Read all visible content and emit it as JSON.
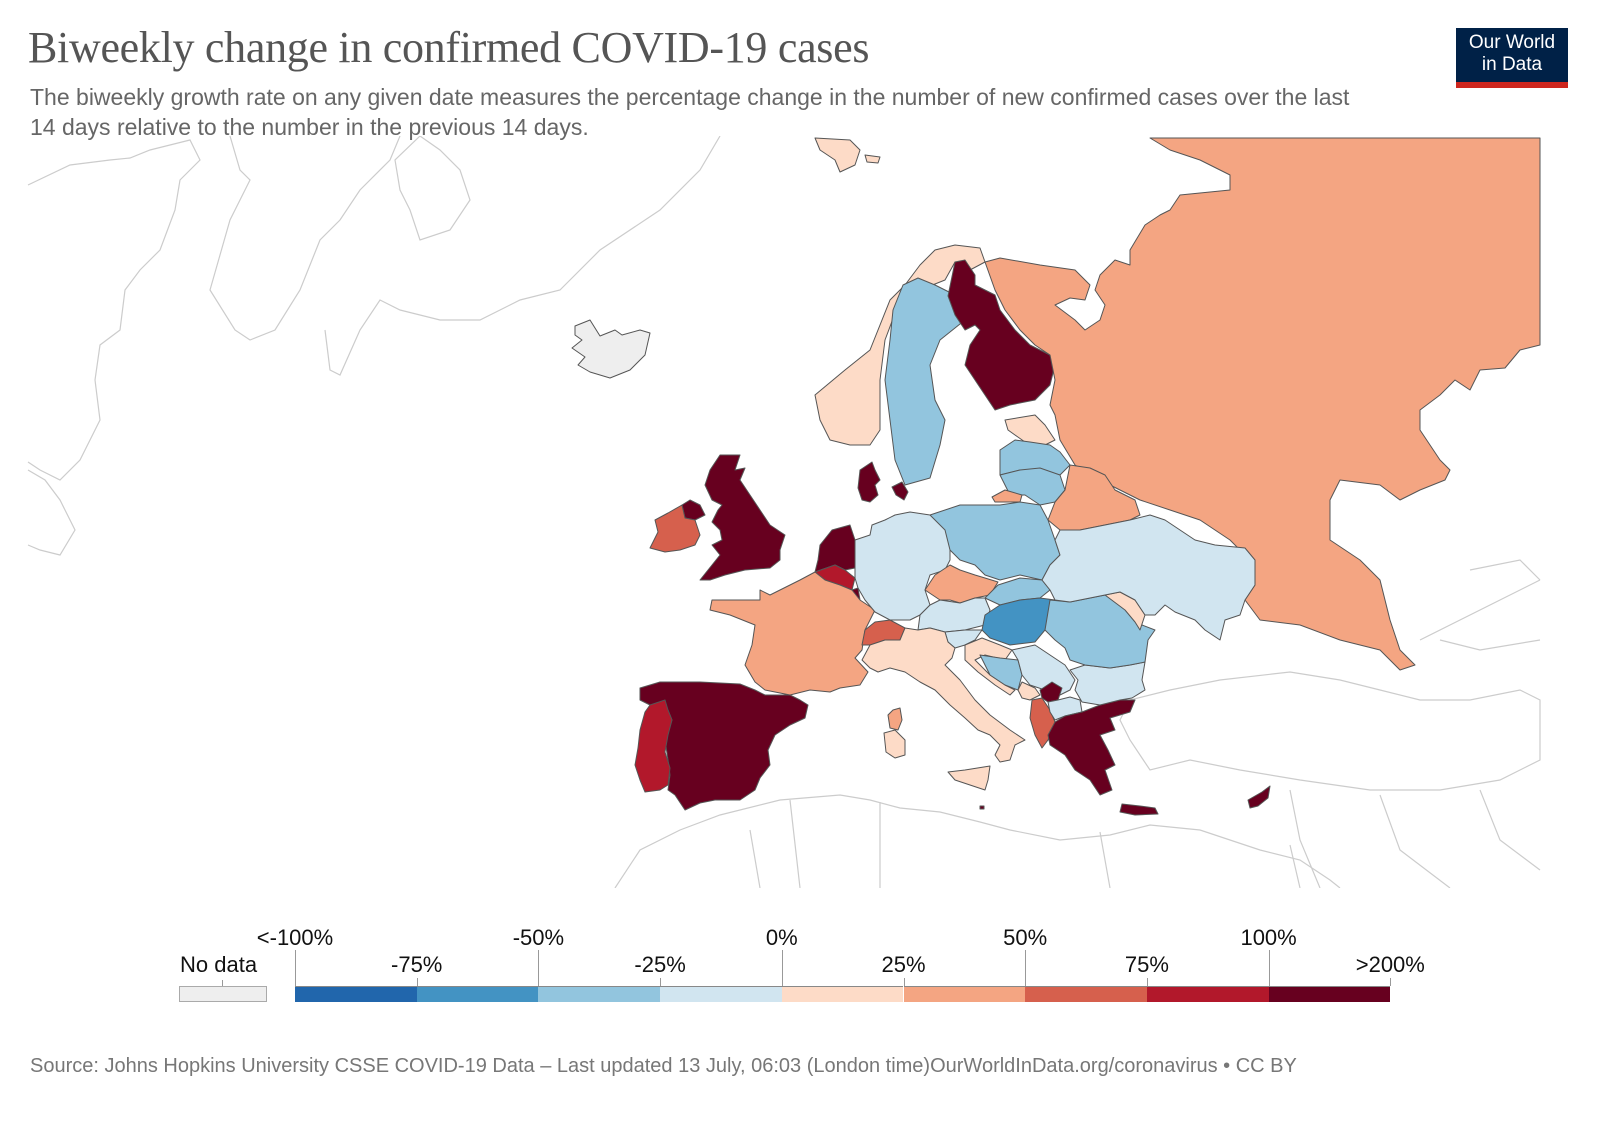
{
  "header": {
    "title": "Biweekly change in confirmed COVID-19 cases",
    "subtitle": "The biweekly growth rate on any given date measures the percentage change in the number of new confirmed cases over the last 14 days relative to the number in the previous 14 days.",
    "logo_line1": "Our World",
    "logo_line2": "in Data"
  },
  "colors": {
    "no_data": "#eeeeee",
    "bins": [
      "#2166ac",
      "#4393c3",
      "#92c5de",
      "#d1e5f0",
      "#fddbc7",
      "#f4a582",
      "#d6604d",
      "#b2182b",
      "#67001f"
    ],
    "logo_bg": "#002147",
    "logo_accent": "#ce261e"
  },
  "legend": {
    "no_data_label": "No data",
    "tick_labels_top": [
      "<-100%",
      "-50%",
      "0%",
      "50%",
      "100%"
    ],
    "tick_labels_bottom": [
      "-75%",
      "-25%",
      "25%",
      "75%",
      ">200%"
    ]
  },
  "chart_data": {
    "type": "choropleth",
    "title": "Biweekly change in confirmed COVID-19 cases",
    "subtitle": "The biweekly growth rate on any given date measures the percentage change in the number of new confirmed cases over the last 14 days relative to the number in the previous 14 days.",
    "region": "Europe",
    "legend_bins": [
      {
        "range": "<-100% to -75%",
        "color": "#2166ac"
      },
      {
        "range": "-75% to -50%",
        "color": "#4393c3"
      },
      {
        "range": "-50% to -25%",
        "color": "#92c5de"
      },
      {
        "range": "-25% to 0%",
        "color": "#d1e5f0"
      },
      {
        "range": "0% to 25%",
        "color": "#fddbc7"
      },
      {
        "range": "25% to 50%",
        "color": "#f4a582"
      },
      {
        "range": "50% to 75%",
        "color": "#d6604d"
      },
      {
        "range": "75% to 100%",
        "color": "#b2182b"
      },
      {
        "range": "100% to >200%",
        "color": "#67001f"
      }
    ],
    "countries": [
      {
        "name": "Iceland",
        "bin": -1
      },
      {
        "name": "Norway",
        "bin": 4
      },
      {
        "name": "Sweden",
        "bin": 2
      },
      {
        "name": "Finland",
        "bin": 8
      },
      {
        "name": "Russia",
        "bin": 5
      },
      {
        "name": "Estonia",
        "bin": 4
      },
      {
        "name": "Latvia",
        "bin": 2
      },
      {
        "name": "Lithuania",
        "bin": 2
      },
      {
        "name": "Belarus",
        "bin": 5
      },
      {
        "name": "Kaliningrad (Russia)",
        "bin": 5
      },
      {
        "name": "Denmark",
        "bin": 8
      },
      {
        "name": "United Kingdom",
        "bin": 8
      },
      {
        "name": "Ireland",
        "bin": 6
      },
      {
        "name": "Northern Ireland (UK)",
        "bin": 8
      },
      {
        "name": "Netherlands",
        "bin": 8
      },
      {
        "name": "Belgium",
        "bin": 7
      },
      {
        "name": "Luxembourg",
        "bin": 8
      },
      {
        "name": "France",
        "bin": 5
      },
      {
        "name": "Germany",
        "bin": 3
      },
      {
        "name": "Poland",
        "bin": 2
      },
      {
        "name": "Czechia",
        "bin": 5
      },
      {
        "name": "Slovakia",
        "bin": 2
      },
      {
        "name": "Austria",
        "bin": 3
      },
      {
        "name": "Hungary",
        "bin": 1
      },
      {
        "name": "Switzerland",
        "bin": 6
      },
      {
        "name": "Italy",
        "bin": 4
      },
      {
        "name": "Slovenia",
        "bin": 3
      },
      {
        "name": "Croatia",
        "bin": 4
      },
      {
        "name": "Bosnia and Herzegovina",
        "bin": 2
      },
      {
        "name": "Serbia",
        "bin": 3
      },
      {
        "name": "Montenegro",
        "bin": 4
      },
      {
        "name": "Kosovo",
        "bin": 8
      },
      {
        "name": "Albania",
        "bin": 6
      },
      {
        "name": "North Macedonia",
        "bin": 3
      },
      {
        "name": "Greece",
        "bin": 8
      },
      {
        "name": "Bulgaria",
        "bin": 3
      },
      {
        "name": "Romania",
        "bin": 2
      },
      {
        "name": "Moldova",
        "bin": 4
      },
      {
        "name": "Ukraine",
        "bin": 3
      },
      {
        "name": "Spain",
        "bin": 8
      },
      {
        "name": "Portugal",
        "bin": 7
      },
      {
        "name": "Corsica (France)",
        "bin": 5
      },
      {
        "name": "Sardinia (Italy)",
        "bin": 4
      },
      {
        "name": "Sicily (Italy)",
        "bin": 4
      },
      {
        "name": "Malta",
        "bin": 8
      },
      {
        "name": "Crete (Greece)",
        "bin": 8
      },
      {
        "name": "Cyprus",
        "bin": 8
      },
      {
        "name": "Svalbard (Norway)",
        "bin": 4
      }
    ]
  },
  "footer": {
    "source": "Source: Johns Hopkins University CSSE COVID-19 Data – Last updated 13 July, 06:03 (London time)",
    "url": "OurWorldInData.org/coronavirus",
    "license": " • CC BY"
  }
}
